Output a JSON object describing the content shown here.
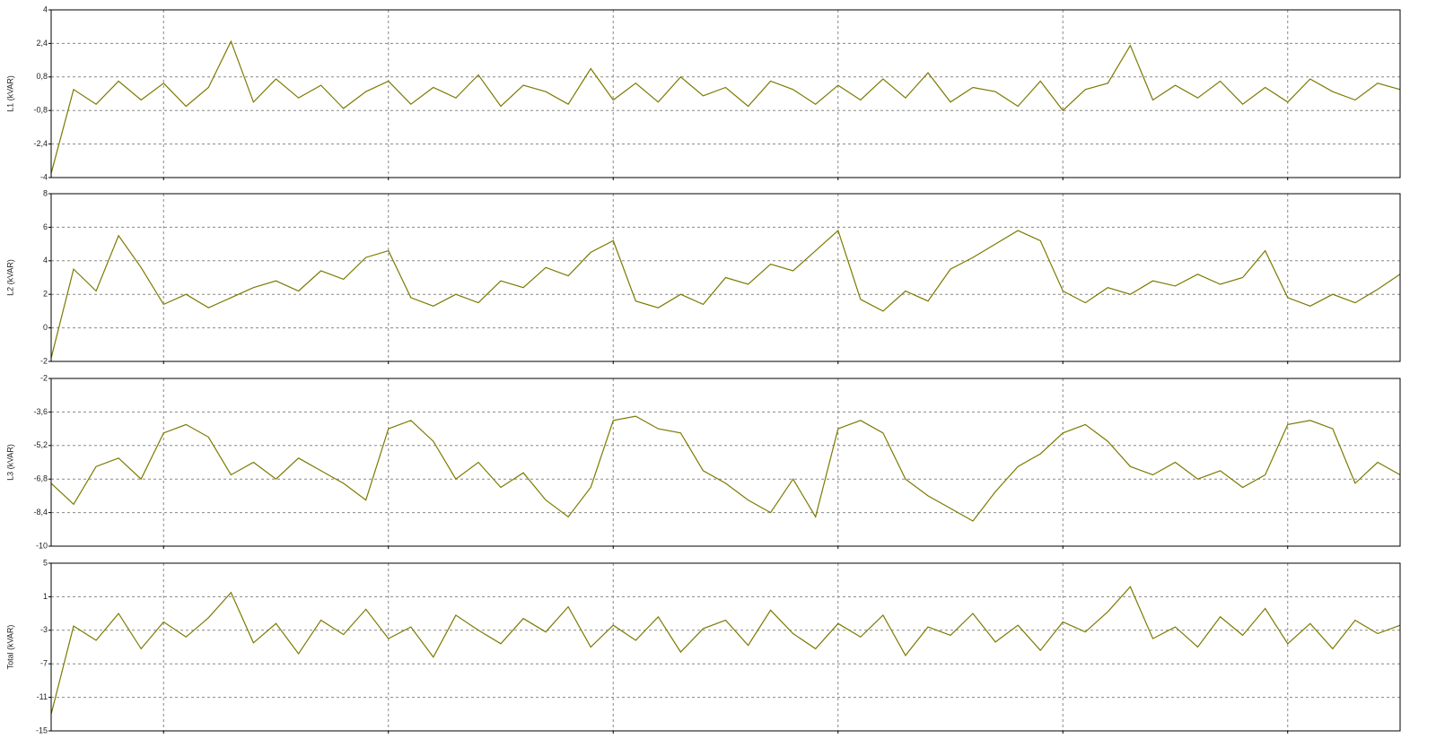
{
  "chart_data": [
    {
      "type": "line",
      "y_label": "L1 (kVAR)",
      "color": "#7d7a00",
      "grid": true,
      "xlim": [
        0,
        6
      ],
      "xticks": [
        0.5,
        1.5,
        2.5,
        3.5,
        4.5,
        5.5
      ],
      "ylim": [
        -4,
        4
      ],
      "yticks": [
        -4,
        {
          "value": -2.4,
          "label": "-2,4"
        },
        {
          "value": -0.8,
          "label": "-0,8"
        },
        {
          "value": 0.8,
          "label": "0,8"
        },
        {
          "value": 2.4,
          "label": "2,4"
        },
        4
      ],
      "x": [
        0,
        0.1,
        0.2,
        0.3,
        0.4,
        0.5,
        0.6,
        0.7,
        0.8,
        0.9,
        1,
        1.1,
        1.2,
        1.3,
        1.4,
        1.5,
        1.6,
        1.7,
        1.8,
        1.9,
        2,
        2.1,
        2.2,
        2.3,
        2.4,
        2.5,
        2.6,
        2.7,
        2.8,
        2.9,
        3,
        3.1,
        3.2,
        3.3,
        3.4,
        3.5,
        3.6,
        3.7,
        3.8,
        3.9,
        4,
        4.1,
        4.2,
        4.3,
        4.4,
        4.5,
        4.6,
        4.7,
        4.8,
        4.9,
        5,
        5.1,
        5.2,
        5.3,
        5.4,
        5.5,
        5.6,
        5.7,
        5.8,
        5.9,
        6
      ],
      "values": [
        -3.8,
        0.2,
        -0.5,
        0.6,
        -0.3,
        0.5,
        -0.6,
        0.3,
        2.5,
        -0.4,
        0.7,
        -0.2,
        0.4,
        -0.7,
        0.1,
        0.6,
        -0.5,
        0.3,
        -0.2,
        0.9,
        -0.6,
        0.4,
        0.1,
        -0.5,
        1.2,
        -0.3,
        0.5,
        -0.4,
        0.8,
        -0.1,
        0.3,
        -0.6,
        0.6,
        0.2,
        -0.5,
        0.4,
        -0.3,
        0.7,
        -0.2,
        1.0,
        -0.4,
        0.3,
        0.1,
        -0.6,
        0.6,
        -0.8,
        0.2,
        0.5,
        2.3,
        -0.3,
        0.4,
        -0.2,
        0.6,
        -0.5,
        0.3,
        -0.4,
        0.7,
        0.1,
        -0.3,
        0.5,
        0.2
      ]
    },
    {
      "type": "line",
      "y_label": "L2 (kVAR)",
      "color": "#7d7a00",
      "grid": true,
      "xlim": [
        0,
        6
      ],
      "xticks": [
        0.5,
        1.5,
        2.5,
        3.5,
        4.5,
        5.5
      ],
      "ylim": [
        -2,
        8
      ],
      "yticks": [
        -2,
        0,
        2,
        4,
        6,
        8
      ],
      "x": [
        0,
        0.1,
        0.2,
        0.3,
        0.4,
        0.5,
        0.6,
        0.7,
        0.8,
        0.9,
        1,
        1.1,
        1.2,
        1.3,
        1.4,
        1.5,
        1.6,
        1.7,
        1.8,
        1.9,
        2,
        2.1,
        2.2,
        2.3,
        2.4,
        2.5,
        2.6,
        2.7,
        2.8,
        2.9,
        3,
        3.1,
        3.2,
        3.3,
        3.4,
        3.5,
        3.6,
        3.7,
        3.8,
        3.9,
        4,
        4.1,
        4.2,
        4.3,
        4.4,
        4.5,
        4.6,
        4.7,
        4.8,
        4.9,
        5,
        5.1,
        5.2,
        5.3,
        5.4,
        5.5,
        5.6,
        5.7,
        5.8,
        5.9,
        6
      ],
      "values": [
        -1.8,
        3.5,
        2.2,
        5.5,
        3.6,
        1.4,
        2.0,
        1.2,
        1.8,
        2.4,
        2.8,
        2.2,
        3.4,
        2.9,
        4.2,
        4.6,
        1.8,
        1.3,
        2.0,
        1.5,
        2.8,
        2.4,
        3.6,
        3.1,
        4.5,
        5.2,
        1.6,
        1.2,
        2.0,
        1.4,
        3.0,
        2.6,
        3.8,
        3.4,
        4.6,
        5.8,
        1.7,
        1.0,
        2.2,
        1.6,
        3.5,
        4.2,
        5.0,
        5.8,
        5.2,
        2.2,
        1.5,
        2.4,
        2.0,
        2.8,
        2.5,
        3.2,
        2.6,
        3.0,
        4.6,
        1.8,
        1.3,
        2.0,
        1.5,
        2.3,
        3.2
      ]
    },
    {
      "type": "line",
      "y_label": "L3 (kVAR)",
      "color": "#7d7a00",
      "grid": true,
      "xlim": [
        0,
        6
      ],
      "xticks": [
        0.5,
        1.5,
        2.5,
        3.5,
        4.5,
        5.5
      ],
      "ylim": [
        -10,
        -2
      ],
      "yticks": [
        -10,
        {
          "value": -8.4,
          "label": "-8,4"
        },
        {
          "value": -6.8,
          "label": "-6,8"
        },
        {
          "value": -5.2,
          "label": "-5,2"
        },
        {
          "value": -3.6,
          "label": "-3,6"
        },
        -2
      ],
      "x": [
        0,
        0.1,
        0.2,
        0.3,
        0.4,
        0.5,
        0.6,
        0.7,
        0.8,
        0.9,
        1,
        1.1,
        1.2,
        1.3,
        1.4,
        1.5,
        1.6,
        1.7,
        1.8,
        1.9,
        2,
        2.1,
        2.2,
        2.3,
        2.4,
        2.5,
        2.6,
        2.7,
        2.8,
        2.9,
        3,
        3.1,
        3.2,
        3.3,
        3.4,
        3.5,
        3.6,
        3.7,
        3.8,
        3.9,
        4,
        4.1,
        4.2,
        4.3,
        4.4,
        4.5,
        4.6,
        4.7,
        4.8,
        4.9,
        5,
        5.1,
        5.2,
        5.3,
        5.4,
        5.5,
        5.6,
        5.7,
        5.8,
        5.9,
        6
      ],
      "values": [
        -7.0,
        -8.0,
        -6.2,
        -5.8,
        -6.8,
        -4.6,
        -4.2,
        -4.8,
        -6.6,
        -6.0,
        -6.8,
        -5.8,
        -6.4,
        -7.0,
        -7.8,
        -4.4,
        -4.0,
        -5.0,
        -6.8,
        -6.0,
        -7.2,
        -6.5,
        -7.8,
        -8.6,
        -7.2,
        -4.0,
        -3.8,
        -4.4,
        -4.6,
        -6.4,
        -7.0,
        -7.8,
        -8.4,
        -6.8,
        -8.6,
        -4.4,
        -4.0,
        -4.6,
        -6.8,
        -7.6,
        -8.2,
        -8.8,
        -7.4,
        -6.2,
        -5.6,
        -4.6,
        -4.2,
        -5.0,
        -6.2,
        -6.6,
        -6.0,
        -6.8,
        -6.4,
        -7.2,
        -6.6,
        -4.2,
        -4.0,
        -4.4,
        -7.0,
        -6.0,
        -6.6
      ]
    },
    {
      "type": "line",
      "y_label": "Total (kVAR)",
      "color": "#7d7a00",
      "grid": true,
      "xlim": [
        0,
        6
      ],
      "xticks": [
        0.5,
        1.5,
        2.5,
        3.5,
        4.5,
        5.5
      ],
      "ylim": [
        -15,
        5
      ],
      "yticks": [
        -15,
        -11,
        -7,
        -3,
        1,
        5
      ],
      "x": [
        0,
        0.1,
        0.2,
        0.3,
        0.4,
        0.5,
        0.6,
        0.7,
        0.8,
        0.9,
        1,
        1.1,
        1.2,
        1.3,
        1.4,
        1.5,
        1.6,
        1.7,
        1.8,
        1.9,
        2,
        2.1,
        2.2,
        2.3,
        2.4,
        2.5,
        2.6,
        2.7,
        2.8,
        2.9,
        3,
        3.1,
        3.2,
        3.3,
        3.4,
        3.5,
        3.6,
        3.7,
        3.8,
        3.9,
        4,
        4.1,
        4.2,
        4.3,
        4.4,
        4.5,
        4.6,
        4.7,
        4.8,
        4.9,
        5,
        5.1,
        5.2,
        5.3,
        5.4,
        5.5,
        5.6,
        5.7,
        5.8,
        5.9,
        6
      ],
      "values": [
        -13,
        -2.5,
        -4.2,
        -1.0,
        -5.2,
        -2.0,
        -3.8,
        -1.5,
        1.5,
        -4.5,
        -2.2,
        -5.8,
        -1.8,
        -3.5,
        -0.5,
        -4.0,
        -2.6,
        -6.2,
        -1.2,
        -3.0,
        -4.6,
        -1.6,
        -3.2,
        -0.2,
        -5.0,
        -2.4,
        -4.2,
        -1.4,
        -5.6,
        -2.8,
        -1.8,
        -4.8,
        -0.6,
        -3.4,
        -5.2,
        -2.2,
        -3.8,
        -1.2,
        -6.0,
        -2.6,
        -3.6,
        -1.0,
        -4.4,
        -2.4,
        -5.4,
        -2.0,
        -3.2,
        -0.8,
        2.2,
        -4.0,
        -2.6,
        -5.0,
        -1.4,
        -3.6,
        -0.4,
        -4.6,
        -2.2,
        -5.2,
        -1.8,
        -3.4,
        -2.4
      ]
    }
  ]
}
